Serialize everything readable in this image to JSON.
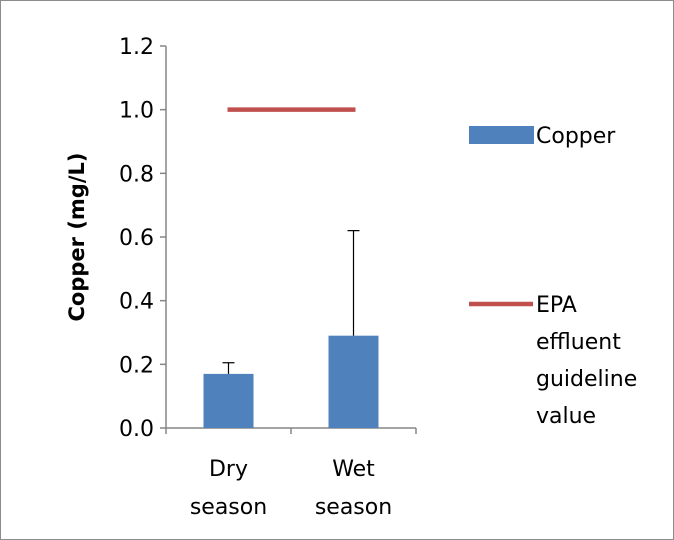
{
  "chart_data": {
    "type": "bar",
    "title": "",
    "xlabel": "",
    "ylabel": "Copper (mg/L)",
    "ylim": [
      0,
      1.2
    ],
    "yticks": [
      "0.0",
      "0.2",
      "0.4",
      "0.6",
      "0.8",
      "1.0",
      "1.2"
    ],
    "categories": [
      [
        "Dry",
        "season"
      ],
      [
        "Wet",
        "season"
      ]
    ],
    "series": [
      {
        "name": "Copper",
        "color": "#4f81bd",
        "values": [
          0.17,
          0.29
        ],
        "error_upper": [
          0.035,
          0.33
        ]
      }
    ],
    "reference_line": {
      "name": [
        "EPA",
        "effluent",
        "guideline",
        "value"
      ],
      "value": 1.0,
      "color": "#c0504d"
    },
    "grid": false,
    "legend_position": "right"
  }
}
